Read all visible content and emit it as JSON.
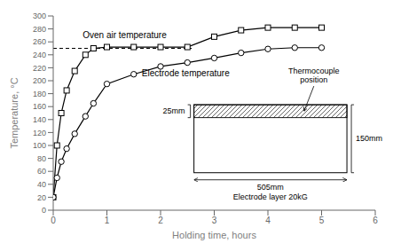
{
  "chart_data": {
    "type": "line",
    "x": [
      0,
      0.07,
      0.15,
      0.25,
      0.4,
      0.6,
      0.75,
      1.0,
      1.5,
      2.0,
      2.5,
      3.0,
      3.5,
      4.0,
      4.5,
      5.0
    ],
    "series": [
      {
        "name": "Oven air temperature",
        "color": "#000000",
        "marker": "square",
        "values": [
          20,
          100,
          150,
          185,
          215,
          240,
          250,
          252,
          252,
          252,
          252,
          268,
          278,
          282,
          282,
          282
        ]
      },
      {
        "name": "Electrode temperature",
        "color": "#000000",
        "marker": "circle",
        "values": [
          20,
          50,
          75,
          95,
          118,
          145,
          165,
          195,
          210,
          222,
          228,
          235,
          243,
          249,
          251,
          251
        ]
      }
    ],
    "x_label": "Holding time, hours",
    "y_label": "Temperature, °C",
    "xlim": [
      0,
      6
    ],
    "ylim": [
      0,
      300
    ],
    "xticks": [
      0,
      1,
      2,
      3,
      4,
      5,
      6
    ],
    "yticks": [
      0,
      20,
      40,
      60,
      80,
      100,
      120,
      140,
      160,
      180,
      200,
      220,
      240,
      260,
      280,
      300
    ],
    "grid": false,
    "reference_line": {
      "y": 250,
      "x_end": 2.58,
      "line_style": "dashed"
    },
    "annotations": [
      "25mm",
      "150mm",
      "505mm",
      "Electrode layer 20kG",
      "Thermocouple\nposition"
    ]
  }
}
